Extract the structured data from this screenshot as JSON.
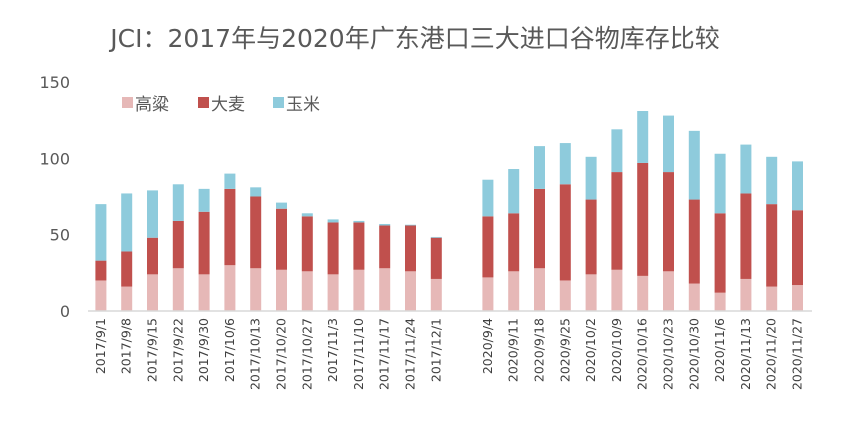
{
  "chart_data": {
    "type": "bar",
    "stacked": true,
    "title": "JCI：2017年与2020年广东港口三大进口谷物库存比较",
    "xlabel": "",
    "ylabel": "",
    "ylim": [
      0,
      150
    ],
    "yticks": [
      0,
      50,
      100,
      150
    ],
    "grid": false,
    "legend_position": "top-left",
    "categories": [
      "2017/9/1",
      "2017/9/8",
      "2017/9/15",
      "2017/9/22",
      "2017/9/30",
      "2017/10/6",
      "2017/10/13",
      "2017/10/20",
      "2017/10/27",
      "2017/11/3",
      "2017/11/10",
      "2017/11/17",
      "2017/11/24",
      "2017/12/1",
      "",
      "2020/9/4",
      "2020/9/11",
      "2020/9/18",
      "2020/9/25",
      "2020/10/2",
      "2020/10/9",
      "2020/10/16",
      "2020/10/23",
      "2020/10/30",
      "2020/11/6",
      "2020/11/13",
      "2020/11/20",
      "2020/11/27"
    ],
    "series": [
      {
        "name": "高粱",
        "color": "#e6b8b7",
        "values": [
          20,
          16,
          24,
          28,
          24,
          30,
          28,
          27,
          26,
          24,
          27,
          28,
          26,
          21,
          null,
          22,
          26,
          28,
          20,
          24,
          27,
          23,
          26,
          18,
          12,
          21,
          16,
          17
        ]
      },
      {
        "name": "大麦",
        "color": "#c0504d",
        "values": [
          13,
          23,
          24,
          31,
          41,
          50,
          47,
          40,
          36,
          34,
          31,
          28,
          30,
          27,
          null,
          40,
          38,
          52,
          63,
          49,
          64,
          74,
          65,
          55,
          52,
          56,
          54,
          49
        ]
      },
      {
        "name": "玉米",
        "color": "#8ecbdc",
        "values": [
          37,
          38,
          31,
          24,
          15,
          10,
          6,
          4,
          2,
          2,
          1,
          1,
          0.5,
          0.5,
          null,
          24,
          29,
          28,
          27,
          28,
          28,
          34,
          37,
          45,
          39,
          32,
          31,
          32
        ]
      }
    ]
  }
}
